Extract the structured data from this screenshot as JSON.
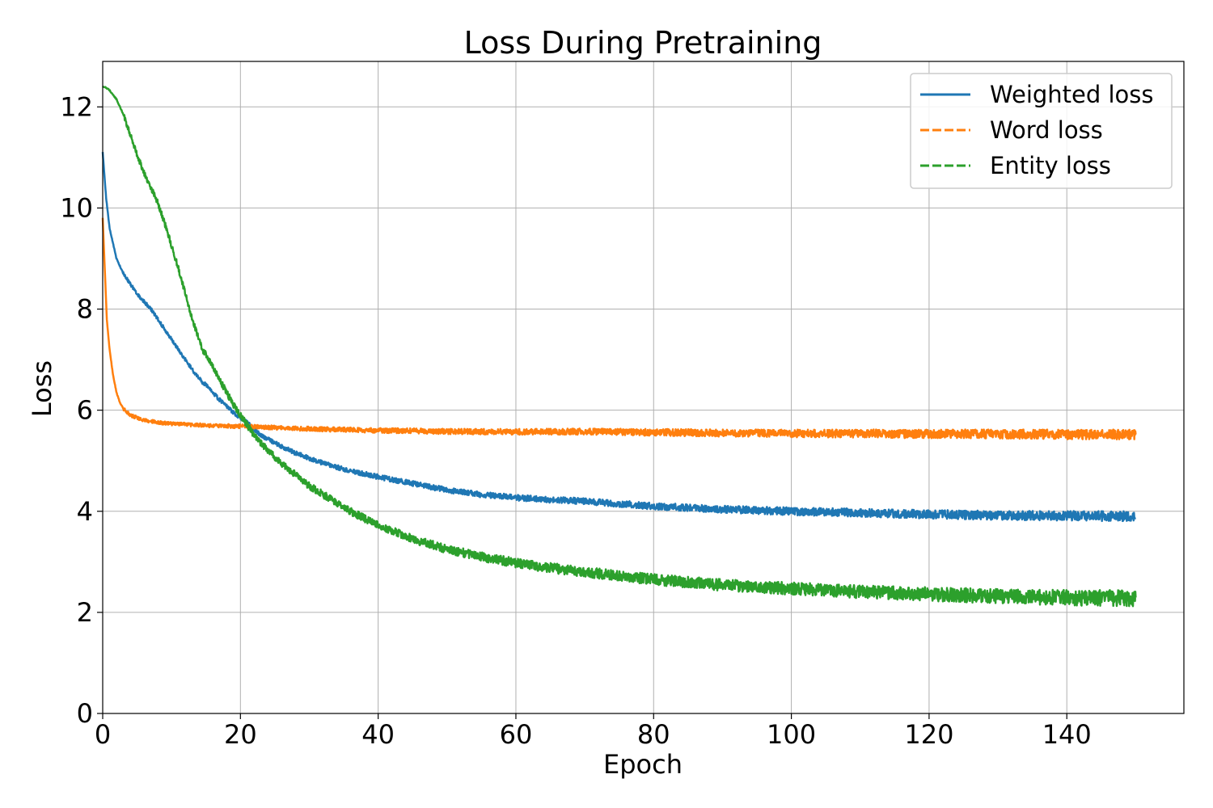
{
  "chart_data": {
    "type": "line",
    "title": "Loss During Pretraining",
    "xlabel": "Epoch",
    "ylabel": "Loss",
    "xlim": [
      0,
      157
    ],
    "ylim": [
      0,
      12.9
    ],
    "xticks": [
      0,
      20,
      40,
      60,
      80,
      100,
      120,
      140
    ],
    "yticks": [
      0,
      2,
      4,
      6,
      8,
      10,
      12
    ],
    "grid": true,
    "legend_position": "top-right",
    "series": [
      {
        "name": "Weighted loss",
        "color": "#1f77b4",
        "style": "solid",
        "x": [
          0,
          0.5,
          1,
          2,
          3,
          5,
          7,
          9,
          11,
          13,
          14.5,
          15,
          17,
          19,
          21,
          23,
          25,
          28,
          32,
          36,
          40,
          45,
          50,
          55,
          60,
          65,
          70,
          75,
          80,
          90,
          100,
          110,
          120,
          130,
          140,
          150
        ],
        "y": [
          11.1,
          10.2,
          9.6,
          9.0,
          8.7,
          8.3,
          8.0,
          7.6,
          7.2,
          6.8,
          6.55,
          6.5,
          6.2,
          5.95,
          5.75,
          5.5,
          5.35,
          5.15,
          4.95,
          4.8,
          4.68,
          4.55,
          4.42,
          4.33,
          4.27,
          4.23,
          4.2,
          4.15,
          4.1,
          4.04,
          4.0,
          3.97,
          3.94,
          3.92,
          3.91,
          3.9
        ]
      },
      {
        "name": "Word loss",
        "color": "#ff7f0e",
        "style": "dashed",
        "x": [
          0,
          0.3,
          0.6,
          1,
          1.5,
          2,
          2.5,
          3,
          4,
          6,
          8,
          10,
          15,
          20,
          30,
          40,
          50,
          60,
          70,
          80,
          90,
          100,
          110,
          120,
          130,
          140,
          150
        ],
        "y": [
          9.8,
          8.8,
          7.8,
          7.2,
          6.7,
          6.35,
          6.15,
          6.03,
          5.9,
          5.8,
          5.76,
          5.73,
          5.7,
          5.68,
          5.63,
          5.6,
          5.58,
          5.57,
          5.58,
          5.56,
          5.55,
          5.54,
          5.54,
          5.53,
          5.53,
          5.52,
          5.52
        ]
      },
      {
        "name": "Entity loss",
        "color": "#2ca02c",
        "style": "dashed",
        "x": [
          0,
          0.5,
          1,
          2,
          3,
          4,
          5,
          6,
          7,
          8,
          9,
          10,
          11,
          12,
          13,
          14,
          14.5,
          15,
          16,
          17,
          18,
          19,
          20,
          21,
          22,
          23,
          24,
          26,
          28,
          30,
          33,
          36,
          40,
          45,
          50,
          55,
          60,
          65,
          70,
          75,
          80,
          90,
          100,
          110,
          120,
          130,
          140,
          150
        ],
        "y": [
          12.4,
          12.38,
          12.33,
          12.15,
          11.85,
          11.45,
          11.05,
          10.7,
          10.4,
          10.1,
          9.7,
          9.25,
          8.8,
          8.3,
          7.8,
          7.4,
          7.2,
          7.1,
          6.85,
          6.6,
          6.35,
          6.1,
          5.9,
          5.7,
          5.5,
          5.35,
          5.2,
          4.95,
          4.72,
          4.5,
          4.25,
          4.0,
          3.72,
          3.45,
          3.25,
          3.1,
          2.98,
          2.88,
          2.8,
          2.72,
          2.65,
          2.54,
          2.47,
          2.41,
          2.36,
          2.32,
          2.29,
          2.28
        ]
      }
    ]
  }
}
